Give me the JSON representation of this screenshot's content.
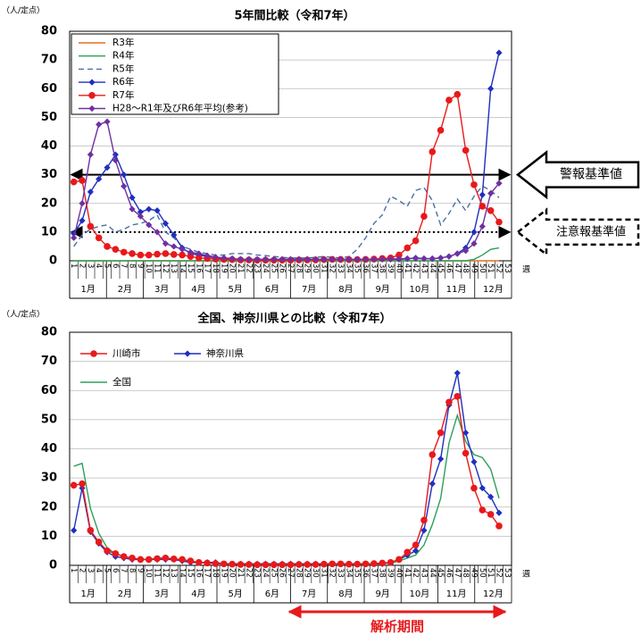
{
  "chart_data": [
    {
      "type": "line",
      "title": "5年間比較（令和7年）",
      "y_label": "（人/定点）",
      "x_label": "週",
      "categories": [
        1,
        2,
        3,
        4,
        5,
        6,
        7,
        8,
        9,
        10,
        11,
        12,
        13,
        14,
        15,
        16,
        17,
        18,
        19,
        20,
        21,
        22,
        23,
        24,
        25,
        26,
        27,
        28,
        29,
        30,
        31,
        32,
        33,
        34,
        35,
        36,
        37,
        38,
        39,
        40,
        41,
        42,
        43,
        44,
        45,
        46,
        47,
        48,
        49,
        50,
        51,
        52,
        53
      ],
      "months": [
        "1月",
        "2月",
        "3月",
        "4月",
        "5月",
        "6月",
        "7月",
        "8月",
        "9月",
        "10月",
        "11月",
        "12月"
      ],
      "ylim": [
        0,
        80
      ],
      "yticks": [
        0,
        10,
        20,
        30,
        40,
        50,
        60,
        70,
        80
      ],
      "grid": true,
      "legend": "top-left",
      "reference_lines": [
        {
          "value": 30,
          "label": "警報基準値",
          "style": "solid"
        },
        {
          "value": 10,
          "label": "注意報基準値",
          "style": "dotted"
        }
      ],
      "series": [
        {
          "name": "R3年",
          "color": "#e07020",
          "style": "solid",
          "marker": "none",
          "values": [
            0,
            0,
            0,
            0,
            0,
            0,
            0,
            0,
            0,
            0,
            0,
            0,
            0,
            0,
            0,
            0,
            0,
            0,
            0,
            0,
            0,
            0,
            0,
            0,
            0,
            0,
            0,
            0,
            0,
            0,
            0,
            0,
            0,
            0,
            0,
            0,
            0,
            0,
            0,
            0,
            0,
            0,
            0,
            0,
            0,
            0,
            0,
            0,
            0,
            0,
            0,
            0,
            null
          ]
        },
        {
          "name": "R4年",
          "color": "#2ca05a",
          "style": "solid",
          "marker": "none",
          "values": [
            0,
            0,
            0,
            0,
            0,
            0,
            0,
            0,
            0,
            0,
            0,
            0,
            0,
            0,
            0,
            0,
            0,
            0,
            0,
            0,
            0,
            0,
            0,
            0,
            0,
            0,
            0,
            0,
            0,
            0,
            0,
            0,
            0,
            0,
            0,
            0,
            0,
            0,
            0,
            0,
            0,
            0,
            0,
            0,
            0,
            0,
            0,
            0,
            0.5,
            2,
            4,
            4.5,
            null
          ]
        },
        {
          "name": "R5年",
          "color": "#4a6fa5",
          "style": "dashed",
          "marker": "none",
          "values": [
            5,
            9,
            11,
            12,
            12.5,
            10,
            11,
            12.5,
            13,
            14,
            16,
            10,
            8,
            5,
            4,
            3,
            2.5,
            2,
            2,
            2.5,
            2.5,
            2.5,
            2,
            1.8,
            1.5,
            1.2,
            1,
            1,
            1,
            1.2,
            1.5,
            1.2,
            1,
            1.5,
            4,
            8,
            13,
            16,
            22.5,
            21,
            19,
            24.5,
            25.5,
            21,
            12.5,
            16.5,
            21.5,
            17.5,
            22.5,
            26,
            24.5,
            22,
            null
          ]
        },
        {
          "name": "R6年",
          "color": "#1f2fbf",
          "style": "solid",
          "marker": "diamond",
          "values": [
            9.5,
            14,
            24,
            28.5,
            32.5,
            37,
            30,
            22,
            17,
            18,
            17.5,
            13,
            9,
            4.5,
            2.5,
            2,
            1.5,
            1,
            0.8,
            0.5,
            0.5,
            0.5,
            0.5,
            0.5,
            0.5,
            0.5,
            0.5,
            0.5,
            0.5,
            0.5,
            0.5,
            0.5,
            0.5,
            0.5,
            0.5,
            0.5,
            0.5,
            0.5,
            0.5,
            0.5,
            0.7,
            1,
            0.8,
            0.7,
            1,
            1.5,
            2.5,
            4.5,
            10,
            23,
            60,
            72.5,
            null
          ]
        },
        {
          "name": "R7年",
          "color": "#e8191b",
          "style": "solid",
          "marker": "circle",
          "values": [
            27.5,
            28,
            12,
            8,
            5,
            4,
            3,
            2.5,
            2,
            2,
            2.3,
            2.5,
            2.2,
            2,
            1.5,
            1,
            0.8,
            0.6,
            0.5,
            0.4,
            0.3,
            0.3,
            0.2,
            0.2,
            0.2,
            0.2,
            0.2,
            0.3,
            0.3,
            0.3,
            0.4,
            0.5,
            0.5,
            0.4,
            0.4,
            0.5,
            0.6,
            0.8,
            1,
            2,
            4.5,
            7,
            15.5,
            38,
            45.5,
            56,
            58,
            38.5,
            26.5,
            19,
            17.5,
            13.5,
            null
          ]
        },
        {
          "name": "H28～R1年及びR6年平均(参考)",
          "color": "#7030a0",
          "style": "solid",
          "marker": "diamond",
          "values": [
            8,
            20,
            37,
            47.5,
            48.5,
            35,
            26,
            18,
            15.5,
            12.5,
            10,
            6,
            5,
            4,
            3,
            2.5,
            1.8,
            1.3,
            1,
            0.8,
            0.5,
            0.5,
            0.5,
            0.5,
            0.5,
            0.5,
            0.5,
            0.5,
            0.5,
            0.5,
            0.5,
            0.5,
            0.5,
            0.5,
            0.5,
            0.5,
            0.5,
            0.5,
            0.6,
            0.7,
            0.8,
            0.8,
            0.7,
            0.8,
            1,
            1.5,
            2.5,
            3.5,
            6,
            12,
            23.5,
            27,
            null
          ]
        }
      ]
    },
    {
      "type": "line",
      "title": "全国、神奈川県との比較（令和7年）",
      "y_label": "（人/定点）",
      "x_label": "週",
      "categories": [
        1,
        2,
        3,
        4,
        5,
        6,
        7,
        8,
        9,
        10,
        11,
        12,
        13,
        14,
        15,
        16,
        17,
        18,
        19,
        20,
        21,
        22,
        23,
        24,
        25,
        26,
        27,
        28,
        29,
        30,
        31,
        32,
        33,
        34,
        35,
        36,
        37,
        38,
        39,
        40,
        41,
        42,
        43,
        44,
        45,
        46,
        47,
        48,
        49,
        50,
        51,
        52,
        53
      ],
      "months": [
        "1月",
        "2月",
        "3月",
        "4月",
        "5月",
        "6月",
        "7月",
        "8月",
        "9月",
        "10月",
        "11月",
        "12月"
      ],
      "ylim": [
        0,
        80
      ],
      "yticks": [
        0,
        10,
        20,
        30,
        40,
        50,
        60,
        70,
        80
      ],
      "grid": true,
      "legend": "top-left",
      "annotation": "解析期間",
      "series": [
        {
          "name": "全国",
          "color": "#2ca05a",
          "style": "solid",
          "marker": "none",
          "values": [
            34,
            35,
            19.5,
            11,
            6,
            4,
            3,
            2.5,
            2,
            2,
            2.5,
            2.5,
            2,
            1.5,
            1.2,
            1,
            1,
            0.8,
            0.5,
            0.5,
            0.5,
            0.5,
            0.5,
            0.5,
            0.5,
            0.5,
            0.5,
            0.5,
            0.5,
            0.5,
            0.5,
            0.5,
            0.5,
            0.5,
            0.5,
            0.5,
            0.5,
            0.6,
            0.8,
            1.5,
            2.5,
            3.5,
            7,
            14,
            23,
            42,
            51.5,
            42.5,
            38,
            37,
            33,
            23,
            null
          ]
        },
        {
          "name": "神奈川県",
          "color": "#1f2fbf",
          "style": "solid",
          "marker": "diamond",
          "values": [
            12,
            26.5,
            11.5,
            7.5,
            4.5,
            3,
            2.5,
            2,
            2,
            2,
            2,
            2,
            2,
            1.5,
            1,
            1,
            1,
            1,
            0.5,
            0.5,
            0.5,
            0.5,
            0.5,
            0.5,
            0.5,
            0.5,
            0.5,
            0.5,
            0.5,
            0.5,
            0.5,
            0.5,
            0.5,
            0.5,
            0.5,
            0.5,
            0.5,
            0.5,
            1,
            2,
            3.5,
            5,
            12,
            28,
            36.5,
            55,
            66,
            45.5,
            35.5,
            26.5,
            23.5,
            18,
            null
          ]
        },
        {
          "name": "川崎市",
          "color": "#e8191b",
          "style": "solid",
          "marker": "circle",
          "values": [
            27.5,
            28,
            12,
            8,
            5,
            4,
            3,
            2.5,
            2,
            2,
            2.3,
            2.5,
            2.2,
            2,
            1.5,
            1,
            0.8,
            0.6,
            0.5,
            0.4,
            0.3,
            0.3,
            0.2,
            0.2,
            0.2,
            0.2,
            0.2,
            0.3,
            0.3,
            0.3,
            0.4,
            0.5,
            0.5,
            0.4,
            0.4,
            0.5,
            0.6,
            0.8,
            1,
            2,
            4.5,
            7,
            15.5,
            38,
            45.5,
            56,
            58,
            38.5,
            26.5,
            19,
            17.5,
            13.5,
            null
          ]
        }
      ]
    }
  ]
}
